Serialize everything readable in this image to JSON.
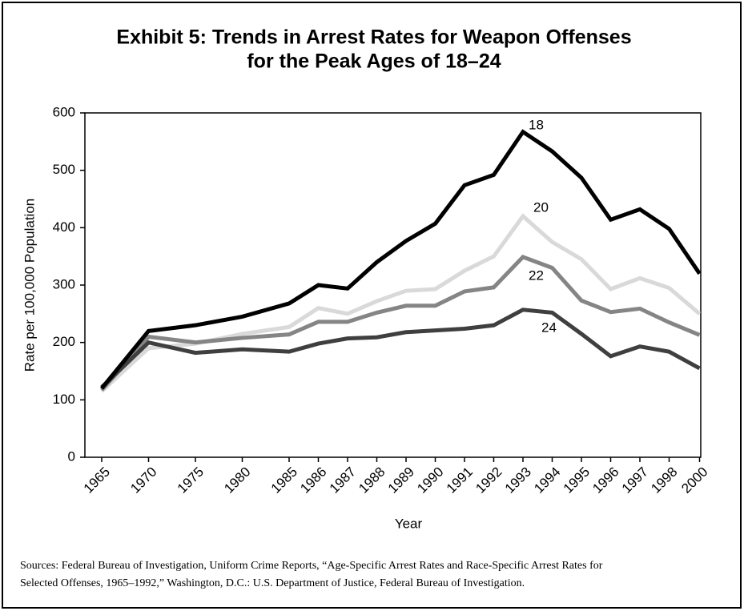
{
  "chart_data": {
    "type": "line",
    "title": [
      "Exhibit 5: Trends in Arrest Rates for Weapon Offenses",
      "for the Peak Ages of 18–24"
    ],
    "xlabel": "Year",
    "ylabel": "Rate per 100,000 Population",
    "categories": [
      "1965",
      "1970",
      "1975",
      "1980",
      "1985",
      "1986",
      "1987",
      "1988",
      "1989",
      "1990",
      "1991",
      "1992",
      "1993",
      "1994",
      "1995",
      "1996",
      "1997",
      "1998",
      "2000"
    ],
    "series": [
      {
        "name": "18",
        "color": "#000000",
        "values": [
          120,
          220,
          230,
          245,
          268,
          300,
          294,
          340,
          377,
          407,
          474,
          492,
          567,
          533,
          487,
          414,
          432,
          398,
          320
        ]
      },
      {
        "name": "20",
        "color": "#d9d9d9",
        "values": [
          115,
          190,
          198,
          215,
          227,
          260,
          250,
          272,
          290,
          293,
          325,
          350,
          420,
          375,
          345,
          293,
          312,
          295,
          250
        ]
      },
      {
        "name": "22",
        "color": "#858585",
        "values": [
          117,
          210,
          200,
          208,
          214,
          236,
          236,
          252,
          264,
          264,
          289,
          296,
          349,
          330,
          273,
          253,
          259,
          235,
          213
        ]
      },
      {
        "name": "24",
        "color": "#3f3f3f",
        "values": [
          122,
          200,
          182,
          188,
          184,
          198,
          207,
          209,
          218,
          221,
          224,
          230,
          257,
          252,
          215,
          176,
          193,
          184,
          155
        ]
      }
    ],
    "ylim": [
      0,
      600
    ],
    "yticks": [
      0,
      100,
      200,
      300,
      400,
      500,
      600
    ],
    "source": [
      "Sources: Federal Bureau of Investigation, Uniform Crime Reports, “Age-Specific Arrest Rates and Race-Specific Arrest Rates for",
      "Selected Offenses, 1965–1992,” Washington, D.C.: U.S. Department of Justice, Federal Bureau of Investigation."
    ]
  }
}
